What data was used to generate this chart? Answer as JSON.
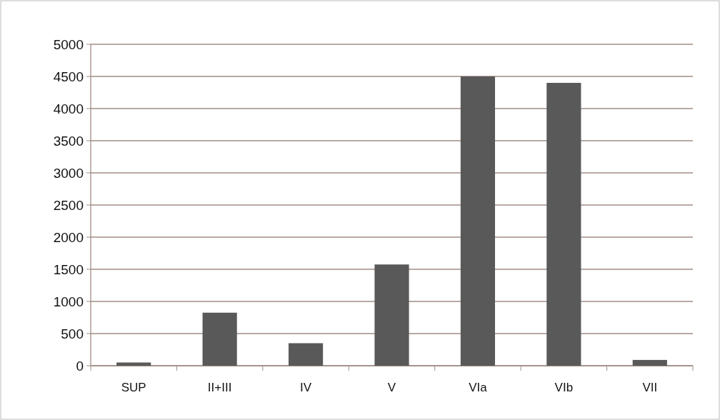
{
  "chart_data": {
    "type": "bar",
    "categories": [
      "SUP",
      "II+III",
      "IV",
      "V",
      "VIa",
      "VIb",
      "VII"
    ],
    "values": [
      50,
      825,
      350,
      1575,
      4500,
      4400,
      90
    ],
    "color": "#595959",
    "ylim": [
      0,
      5000
    ],
    "yticks": [
      0,
      500,
      1000,
      1500,
      2000,
      2500,
      3000,
      3500,
      4000,
      4500,
      5000
    ],
    "grid": "y"
  }
}
